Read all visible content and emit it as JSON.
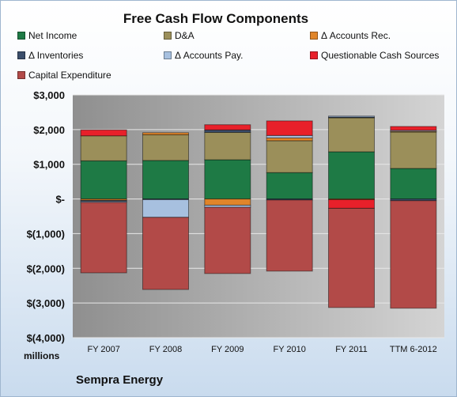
{
  "chart_data": {
    "type": "bar",
    "stacked": true,
    "title": "Free Cash Flow Components",
    "ylabel": "millions",
    "footer": "Sempra Energy",
    "categories": [
      "FY 2007",
      "FY 2008",
      "FY 2009",
      "FY 2010",
      "FY 2011",
      "TTM 6-2012"
    ],
    "ylim": [
      -4000,
      3000
    ],
    "yticks": [
      {
        "value": 3000,
        "label": "$3,000"
      },
      {
        "value": 2000,
        "label": "$2,000"
      },
      {
        "value": 1000,
        "label": "$1,000"
      },
      {
        "value": 0,
        "label": "$-"
      },
      {
        "value": -1000,
        "label": "$(1,000)"
      },
      {
        "value": -2000,
        "label": "$(2,000)"
      },
      {
        "value": -3000,
        "label": "$(3,000)"
      },
      {
        "value": -4000,
        "label": "$(4,000)"
      }
    ],
    "grid": true,
    "legend_position": "top",
    "series": [
      {
        "name": "Net Income",
        "color": "#1e7a45",
        "values": [
          1100,
          1110,
          1130,
          760,
          1360,
          880
        ]
      },
      {
        "name": "D&A",
        "color": "#9b8f5a",
        "values": [
          720,
          740,
          790,
          920,
          980,
          1050
        ]
      },
      {
        "name": "Δ Accounts Rec.",
        "color": "#e0852a",
        "values": [
          -40,
          60,
          -180,
          80,
          -20,
          20
        ]
      },
      {
        "name": "Δ Inventories",
        "color": "#3b4e6b",
        "values": [
          -30,
          -20,
          70,
          -30,
          20,
          -50
        ]
      },
      {
        "name": "Δ Accounts Pay.",
        "color": "#a7c0df",
        "values": [
          -30,
          -510,
          -60,
          70,
          30,
          30
        ]
      },
      {
        "name": "Questionable Cash Sources",
        "color": "#e8202a",
        "values": [
          170,
          0,
          150,
          420,
          -250,
          110
        ]
      },
      {
        "name": "Capital Expenditure",
        "color": "#b24a48",
        "values": [
          -2030,
          -2080,
          -1910,
          -2050,
          -2860,
          -3100
        ]
      }
    ]
  }
}
